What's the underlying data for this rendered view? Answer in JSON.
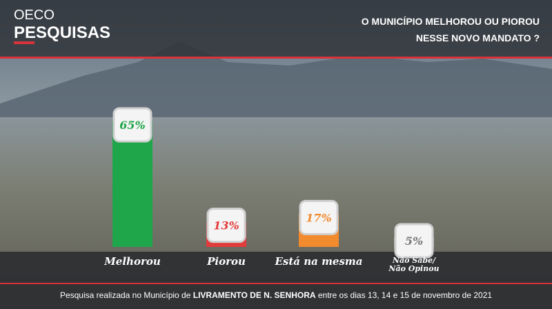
{
  "header": {
    "brand_top": "OECO",
    "brand": "PESQUISAS",
    "title_lines": [
      "O MUNICÍPIO MELHOROU OU PIOROU",
      "NESSE NOVO MANDATO ?"
    ]
  },
  "chart_data": {
    "type": "bar",
    "categories": [
      "Melhorou",
      "Piorou",
      "Está na mesma",
      "Não Sabe/\nNão Opinou"
    ],
    "values": [
      65,
      13,
      17,
      5
    ],
    "value_labels": [
      "65%",
      "13%",
      "17%",
      "5%"
    ],
    "colors": [
      "#1fa64a",
      "#e23b3b",
      "#f28a2e",
      "#b9b9b9"
    ]
  },
  "footer": {
    "parts": [
      "Pesquisa realizada no Município de ",
      "LIVRAMENTO DE N. SENHORA",
      " entre os dias 13, 14 e 15 de novembro de 2021"
    ]
  }
}
